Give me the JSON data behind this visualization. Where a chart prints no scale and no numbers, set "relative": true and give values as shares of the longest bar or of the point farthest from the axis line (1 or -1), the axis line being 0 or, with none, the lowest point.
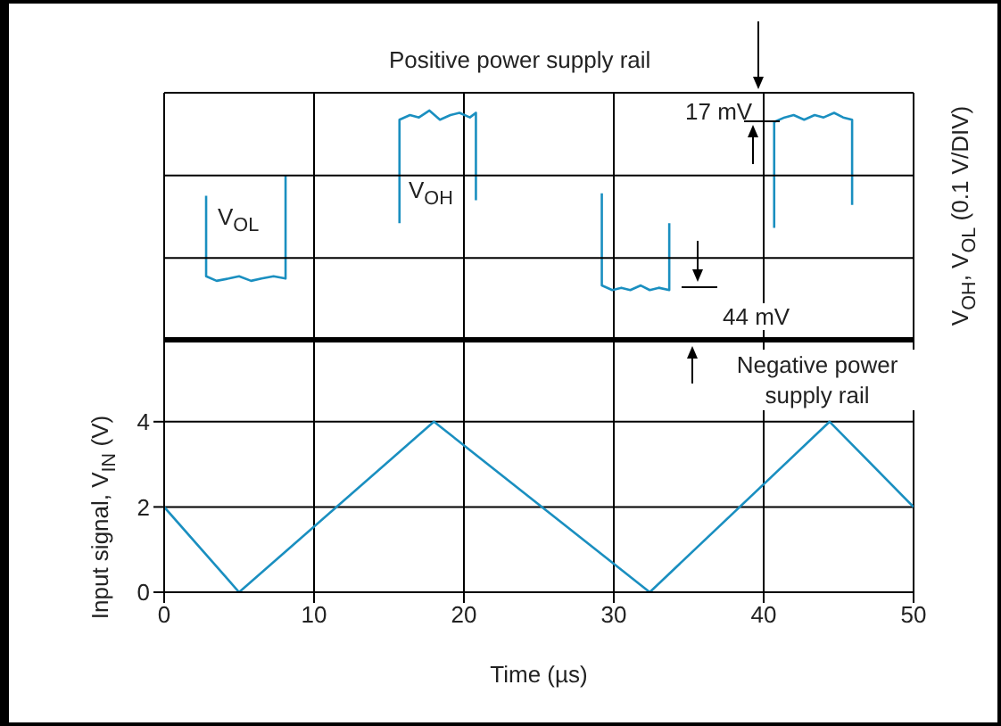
{
  "chart_data": [
    {
      "type": "line",
      "relative": true,
      "grid": true,
      "tick_labels": false,
      "xlim": [
        0,
        50
      ],
      "xticks": [
        0,
        10,
        20,
        30,
        40,
        50
      ],
      "ylabel": "V$_{OH}$, V$_{OL}$ (0.1 V/DIV)",
      "annotations": [
        "Positive power supply rail",
        "17 mV",
        "44 mV",
        "Negative power supply rail"
      ],
      "series": [
        {
          "name": "V$_{OL}$",
          "color": "#1a8fc0",
          "x": [
            2.8,
            2.8,
            3.5,
            4.3,
            5.0,
            5.8,
            6.5,
            7.3,
            8.1,
            8.1,
            18,
            29.2,
            29.2,
            29.9,
            30.5,
            31.1,
            31.8,
            32.4,
            33.0,
            33.7,
            33.7
          ],
          "values": [
            0.63,
            0.28,
            0.26,
            0.27,
            0.28,
            0.26,
            0.27,
            0.28,
            0.27,
            0.72,
            null,
            0.64,
            0.24,
            0.22,
            0.23,
            0.22,
            0.24,
            0.22,
            0.23,
            0.22,
            0.51
          ]
        },
        {
          "name": "V$_{OH}$",
          "color": "#1a8fc0",
          "x": [
            15.7,
            15.7,
            16.4,
            17.0,
            17.7,
            18.4,
            19.1,
            19.7,
            20.4,
            20.8,
            20.8,
            30,
            40.7,
            40.7,
            41.4,
            42.0,
            42.7,
            43.4,
            44.0,
            44.7,
            45.3,
            45.9,
            45.9
          ],
          "values": [
            0.51,
            0.96,
            0.98,
            0.97,
            1.0,
            0.96,
            0.98,
            0.99,
            0.97,
            0.99,
            0.61,
            null,
            0.49,
            0.95,
            0.97,
            0.98,
            0.96,
            0.98,
            0.97,
            0.99,
            0.97,
            0.96,
            0.59
          ]
        }
      ]
    },
    {
      "type": "line",
      "grid": true,
      "xlim": [
        0,
        50
      ],
      "xticks": [
        0,
        10,
        20,
        30,
        40,
        50
      ],
      "ylim": [
        0,
        5.9
      ],
      "yticks": [
        0,
        2,
        4
      ],
      "xlabel": "Time (µs)",
      "ylabel": "Input signal, V$_{IN}$ (V)",
      "x": [
        0,
        5,
        18,
        32.4,
        44.4,
        50
      ],
      "series": [
        {
          "color": "#1a8fc0",
          "values": [
            2,
            0,
            4,
            0,
            4,
            2
          ]
        }
      ]
    }
  ]
}
